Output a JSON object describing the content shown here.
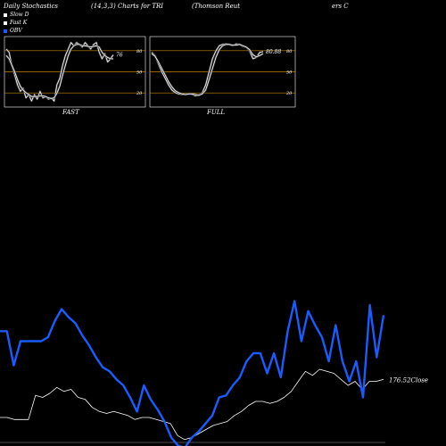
{
  "header": {
    "left": "Daily Stochastics",
    "middle": "(14,3,3) Charts for TRI",
    "right": "(Thomson Reut",
    "right2": "ers C"
  },
  "legend": [
    {
      "label": "Slow D",
      "color": "#ffffff"
    },
    {
      "label": "Fast K",
      "color": "#ffffff"
    },
    {
      "label": "OBV",
      "color": "#1a5cff"
    }
  ],
  "colors": {
    "background": "#000000",
    "line": "#ffffff",
    "obv": "#1a5cff",
    "levels": "#c8860a"
  },
  "chart_data": [
    {
      "type": "line",
      "name": "FAST",
      "xlabel": "FAST",
      "ylim": [
        0,
        100
      ],
      "levels": [
        20,
        50,
        80
      ],
      "tick_labels": [
        "80",
        "50",
        "20"
      ],
      "last_value_label": "76",
      "series": [
        {
          "name": "Fast K",
          "values": [
            85,
            80,
            60,
            45,
            30,
            20,
            25,
            10,
            15,
            5,
            15,
            8,
            20,
            10,
            12,
            8,
            10,
            5,
            30,
            40,
            60,
            75,
            85,
            95,
            90,
            95,
            92,
            88,
            95,
            90,
            85,
            92,
            95,
            80,
            70,
            78,
            65,
            70,
            76
          ]
        },
        {
          "name": "Slow D",
          "values": [
            75,
            70,
            60,
            50,
            38,
            28,
            22,
            18,
            15,
            12,
            12,
            12,
            13,
            13,
            12,
            10,
            9,
            10,
            17,
            28,
            45,
            60,
            75,
            85,
            90,
            92,
            92,
            90,
            90,
            89,
            88,
            89,
            90,
            88,
            80,
            75,
            72,
            70,
            70
          ]
        }
      ]
    },
    {
      "type": "line",
      "name": "FULL",
      "xlabel": "FULL",
      "ylim": [
        0,
        100
      ],
      "levels": [
        20,
        50,
        80
      ],
      "tick_labels": [
        "80",
        "50",
        "20"
      ],
      "last_value_label": "80.88",
      "series": [
        {
          "name": "Fast K",
          "values": [
            80,
            75,
            62,
            50,
            40,
            30,
            22,
            18,
            16,
            15,
            15,
            17,
            15,
            13,
            14,
            18,
            30,
            50,
            70,
            82,
            90,
            92,
            93,
            92,
            90,
            93,
            92,
            89,
            88,
            82,
            70,
            72,
            80,
            81
          ]
        },
        {
          "name": "Slow D",
          "values": [
            78,
            74,
            65,
            55,
            45,
            35,
            27,
            21,
            18,
            16,
            15,
            16,
            16,
            15,
            14,
            16,
            22,
            38,
            55,
            72,
            84,
            90,
            92,
            92,
            91,
            91,
            92,
            90,
            88,
            84,
            76,
            73,
            75,
            78
          ]
        }
      ]
    },
    {
      "type": "line",
      "name": "main",
      "ylim": [
        0,
        100
      ],
      "close_label": "176.52Close",
      "series": [
        {
          "name": "OBV",
          "values": [
            55,
            55,
            38,
            50,
            50,
            50,
            50,
            52,
            60,
            66,
            62,
            59,
            53,
            48,
            42,
            37,
            35,
            31,
            28,
            22,
            15,
            28,
            21,
            16,
            10,
            2,
            -2,
            -3,
            2,
            5,
            9,
            13,
            22,
            23,
            28,
            32,
            40,
            44,
            44,
            34,
            44,
            32,
            55,
            70,
            50,
            65,
            58,
            52,
            40,
            58,
            40,
            30,
            40,
            22,
            68,
            42,
            63
          ]
        },
        {
          "name": "Price",
          "values": [
            12,
            12,
            11,
            11,
            11,
            23,
            22,
            24,
            27,
            25,
            26,
            22,
            21,
            17,
            15,
            14,
            15,
            14,
            13,
            11,
            12,
            12,
            11,
            10,
            9,
            3,
            1,
            2,
            4,
            6,
            8,
            9,
            10,
            13,
            15,
            18,
            20,
            20,
            19,
            20,
            22,
            25,
            30,
            35,
            33,
            36,
            35,
            34,
            31,
            28,
            30,
            26,
            30,
            30,
            31
          ]
        }
      ]
    }
  ]
}
